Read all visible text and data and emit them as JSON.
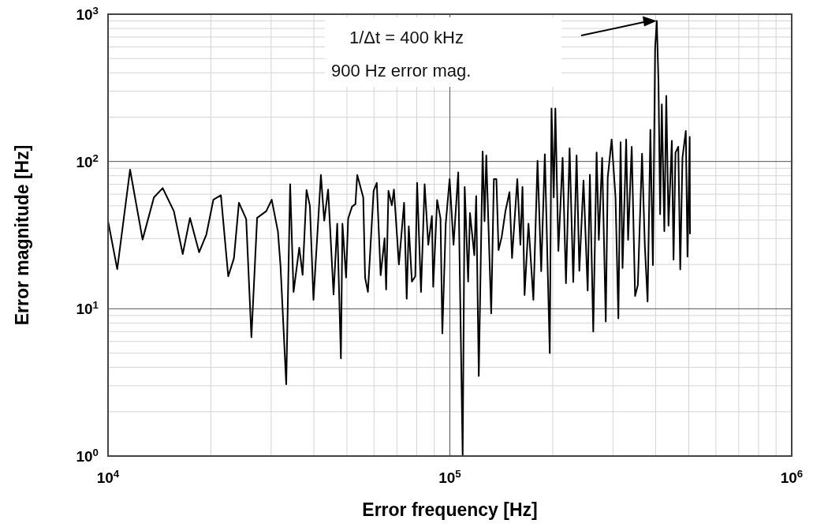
{
  "chart_data": {
    "type": "line",
    "xlabel": "Error frequency [Hz]",
    "ylabel": "Error magnitude [Hz]",
    "log": "xy",
    "grid": true,
    "marker": "none",
    "line_style": "solid",
    "xlim": [
      10000,
      1000000
    ],
    "ylim": [
      1,
      1000
    ],
    "xticks": [
      {
        "value": 10000,
        "label": "10$^{4}$"
      },
      {
        "value": 100000,
        "label": "10$^{5}$"
      },
      {
        "value": 1000000,
        "label": "10$^{6}$"
      }
    ],
    "yticks": [
      {
        "value": 1,
        "label": "10$^{0}$"
      },
      {
        "value": 10,
        "label": "10$^{1}$"
      },
      {
        "value": 100,
        "label": "10$^{2}$"
      },
      {
        "value": 1000,
        "label": "10$^{3}$"
      }
    ],
    "annotations": [
      "1/Δt = 400 kHz",
      "900 Hz error mag."
    ],
    "series": [
      {
        "color": "#000000",
        "x": [
          10000,
          10640,
          11600,
          12620,
          13620,
          14450,
          15580,
          16540,
          17370,
          18470,
          19400,
          20330,
          21390,
          22470,
          23350,
          24150,
          25360,
          26270,
          27300,
          29030,
          30120,
          31410,
          31960,
          33210,
          34100,
          34890,
          36260,
          37090,
          38080,
          38950,
          39900,
          41950,
          42900,
          44040,
          45680,
          46830,
          48000,
          48500,
          49700,
          50400,
          51740,
          52930,
          53580,
          55800,
          56490,
          57580,
          59840,
          61110,
          62740,
          64420,
          65100,
          66130,
          67660,
          68610,
          70950,
          73470,
          74770,
          75820,
          77430,
          79210,
          80200,
          82330,
          84370,
          86470,
          88610,
          89390,
          91780,
          93890,
          95060,
          97250,
          99840,
          102500,
          105800,
          109000,
          110500,
          113100,
          114500,
          117900,
          119400,
          121500,
          124700,
          126300,
          127800,
          132100,
          134500,
          136800,
          138800,
          141800,
          145500,
          149400,
          152000,
          157500,
          160800,
          163100,
          165400,
          169800,
          175500,
          180500,
          185000,
          189600,
          196000,
          198300,
          201300,
          203500,
          207700,
          213700,
          218600,
          224000,
          229600,
          234800,
          239200,
          246000,
          253000,
          256800,
          262700,
          268700,
          272700,
          278900,
          285800,
          289600,
          297300,
          305200,
          311100,
          315800,
          320000,
          327900,
          332200,
          340400,
          348200,
          354700,
          364900,
          371800,
          378800,
          386000,
          392600,
          398500,
          403000,
          407600,
          412200,
          416900,
          424000,
          429600,
          436100,
          446000,
          451100,
          457100,
          465800,
          472000,
          479100,
          490000,
          495600,
          503000,
          504000
        ],
        "values": [
          39.4,
          18.6,
          88,
          29.5,
          57,
          66,
          46,
          23.5,
          41.4,
          24.2,
          32,
          55,
          59,
          16.6,
          22,
          52.5,
          40.7,
          6.4,
          41.4,
          46,
          55,
          33.4,
          19.5,
          3.07,
          70,
          13,
          26,
          17,
          64,
          50,
          11.5,
          81,
          39.7,
          64.5,
          12.5,
          37.8,
          4.6,
          37.8,
          16.3,
          41,
          49.4,
          51.4,
          80.9,
          57,
          16.3,
          13,
          63.2,
          71.5,
          16.9,
          30.1,
          13.5,
          63.2,
          50.4,
          64.5,
          20,
          52.5,
          11.7,
          36.3,
          15.3,
          16.6,
          71.5,
          13,
          70,
          27.2,
          42.7,
          14.1,
          54.7,
          41,
          6.8,
          37.8,
          76,
          27.2,
          84.3,
          1,
          67.2,
          15.3,
          44.6,
          23.1,
          58.2,
          3.5,
          117,
          39.4,
          110,
          9.3,
          76,
          76,
          25,
          30.8,
          46.4,
          61.9,
          22.1,
          76,
          27.2,
          67.2,
          12.4,
          37.8,
          11.5,
          101,
          18,
          112,
          5,
          229,
          57,
          229,
          24.7,
          106,
          14.9,
          123,
          15.2,
          110,
          18.1,
          74.3,
          13.3,
          81.2,
          7,
          115,
          29.4,
          106,
          8.2,
          77.6,
          141,
          57,
          8.6,
          135,
          18.9,
          141,
          29.4,
          126,
          12.2,
          14.5,
          113,
          27,
          11.2,
          164,
          19.8,
          590,
          900,
          348,
          43.8,
          244,
          33.6,
          279,
          36.7,
          138,
          21.6,
          115,
          126,
          18.5,
          106,
          161,
          22.6,
          147,
          32.1
        ]
      }
    ]
  }
}
